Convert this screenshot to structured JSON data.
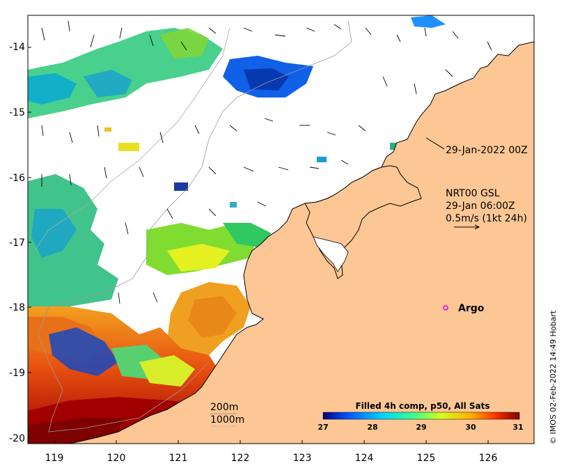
{
  "map": {
    "lat_ticks": [
      "-14",
      "-15",
      "-16",
      "-17",
      "-18",
      "-19",
      "-20"
    ],
    "lon_ticks": [
      "119",
      "120",
      "121",
      "122",
      "123",
      "124",
      "125",
      "126"
    ],
    "land_color": "#fcc794",
    "sea_color": "#ffffff",
    "coast_color": "#000000"
  },
  "annotations": {
    "sst_time": "29-Jan-2022 00Z",
    "current_source": "NRT00 GSL",
    "current_time": "29-Jan 06:00Z",
    "vector_scale": "0.5m/s (1kt 24h)",
    "argo_label": "Argo",
    "isobath_200": "200m",
    "isobath_1000": "1000m",
    "credit": "© IMOS 02-Feb-2022 14:49 Hobart"
  },
  "colorbar": {
    "title": "Filled 4h comp, p50, All Sats",
    "ticks": [
      "27",
      "28",
      "29",
      "30",
      "31"
    ],
    "colors": [
      "#00007f",
      "#0050ff",
      "#00d4ff",
      "#31ff96",
      "#d4ff1c",
      "#ffb000",
      "#ff3000",
      "#7f0000"
    ]
  }
}
